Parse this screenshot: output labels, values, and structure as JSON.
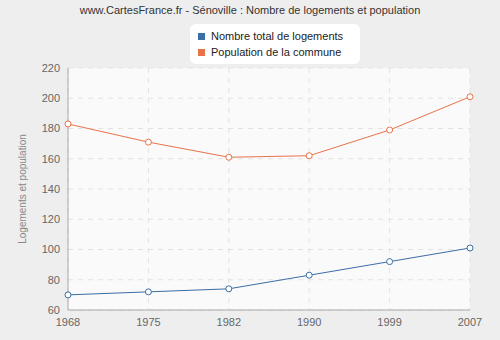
{
  "chart_data": {
    "type": "line",
    "title": "www.CartesFrance.fr - Sénoville : Nombre de logements et population",
    "y_label": "Logements et population",
    "categories": [
      "1968",
      "1975",
      "1982",
      "1990",
      "1999",
      "2007"
    ],
    "series": [
      {
        "name": "Nombre total de logements",
        "color": "#3a6ea5",
        "values": [
          70,
          72,
          74,
          83,
          92,
          101
        ],
        "marker": "circle"
      },
      {
        "name": "Population de la commune",
        "color": "#e8734a",
        "values": [
          183,
          171,
          161,
          162,
          179,
          201
        ],
        "marker": "circle"
      }
    ],
    "ylim": [
      60,
      220
    ],
    "yticks": [
      60,
      80,
      100,
      120,
      140,
      160,
      180,
      200,
      220
    ],
    "grid": true,
    "legend": "top"
  }
}
